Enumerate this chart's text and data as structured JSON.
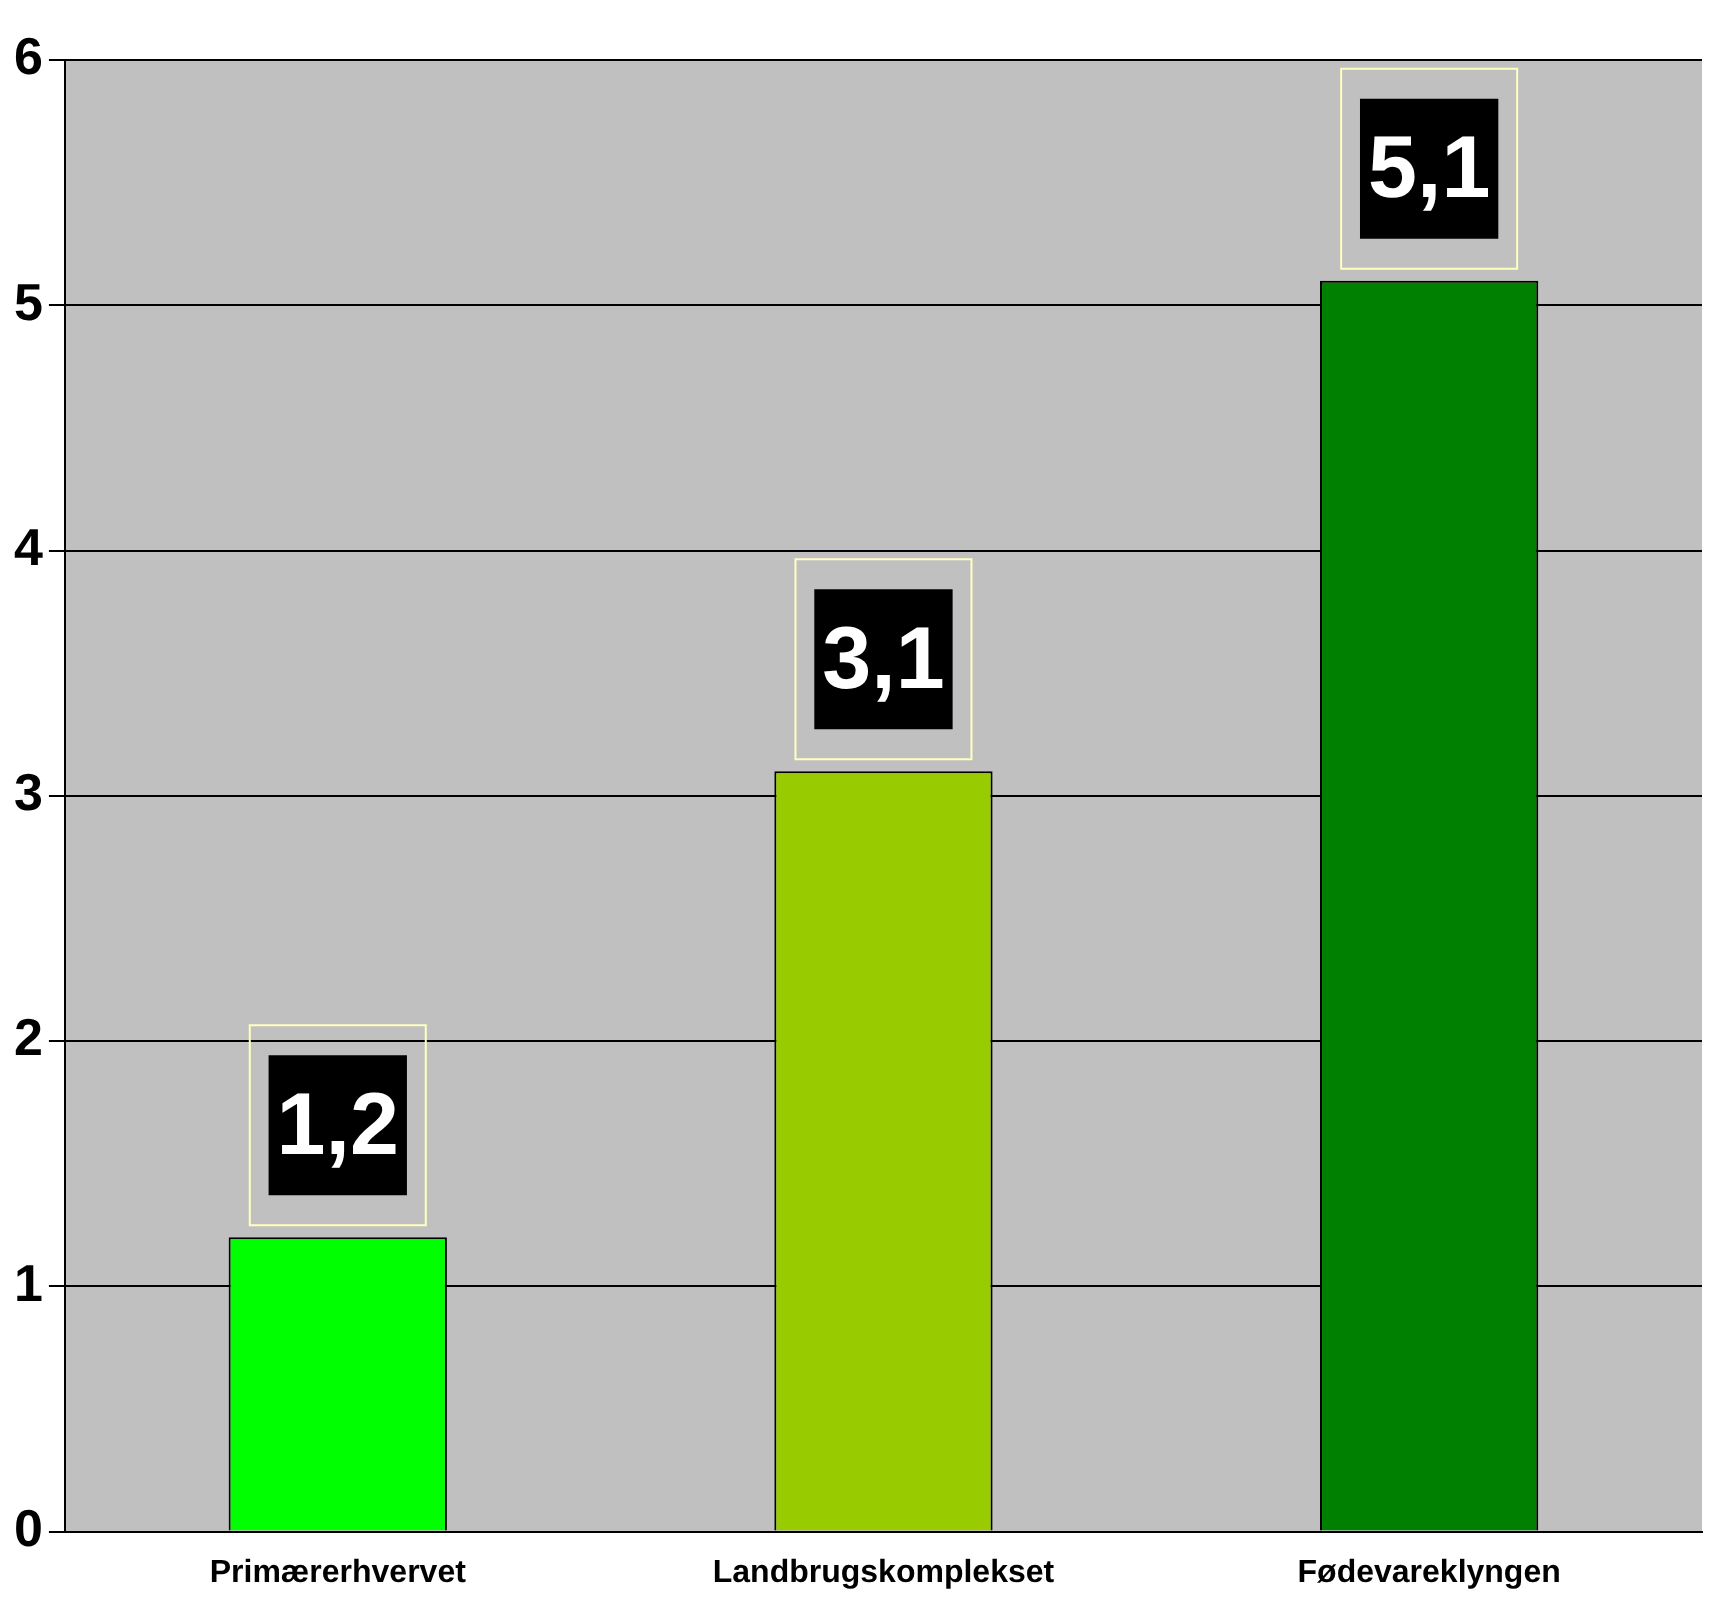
{
  "chart_data": {
    "type": "bar",
    "categories": [
      "Primærerhvervet",
      "Landbrugskomplekset",
      "Fødevareklyngen"
    ],
    "values": [
      1.2,
      3.1,
      5.1
    ],
    "value_labels": [
      "1,2",
      "3,1",
      "5,1"
    ],
    "colors": [
      "#00ff00",
      "#99cc00",
      "#008000"
    ],
    "ylim": [
      0,
      6
    ],
    "yticks": [
      0,
      1,
      2,
      3,
      4,
      5,
      6
    ],
    "grid": "y",
    "legend": false
  }
}
